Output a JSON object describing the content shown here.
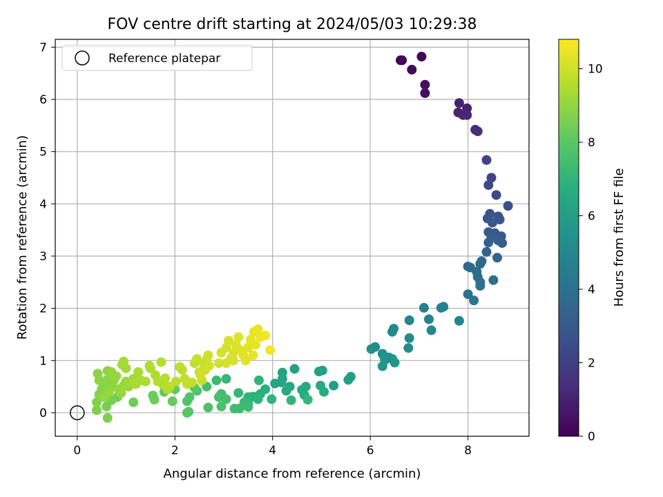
{
  "chart_data": {
    "type": "scatter",
    "title": "FOV centre drift starting at 2024/05/03 10:29:38",
    "xlabel": "Angular distance from reference (arcmin)",
    "ylabel": "Rotation from reference (arcmin)",
    "xlim": [
      -0.45,
      9.25
    ],
    "ylim": [
      -0.45,
      7.15
    ],
    "x_ticks": [
      0,
      2,
      4,
      6,
      8
    ],
    "y_ticks": [
      0,
      1,
      2,
      3,
      4,
      5,
      6,
      7
    ],
    "grid": true,
    "legend": {
      "placement": "top-left",
      "entries": [
        "Reference platepar"
      ]
    },
    "reference_point": {
      "x": 0,
      "y": 0,
      "label": "Reference platepar"
    },
    "colorbar": {
      "label": "Hours from first FF file",
      "colormap": "viridis",
      "min": 0,
      "max": 10.8,
      "ticks": [
        0,
        2,
        4,
        6,
        8,
        10
      ]
    },
    "points": [
      {
        "x": 6.65,
        "y": 6.75,
        "t": 0.1
      },
      {
        "x": 6.62,
        "y": 6.75,
        "t": 0.15
      },
      {
        "x": 7.05,
        "y": 6.82,
        "t": 0.2
      },
      {
        "x": 6.85,
        "y": 6.57,
        "t": 0.25
      },
      {
        "x": 7.12,
        "y": 6.28,
        "t": 0.4
      },
      {
        "x": 7.12,
        "y": 6.12,
        "t": 0.45
      },
      {
        "x": 7.82,
        "y": 5.93,
        "t": 1.0
      },
      {
        "x": 7.98,
        "y": 5.83,
        "t": 1.05
      },
      {
        "x": 7.8,
        "y": 5.75,
        "t": 1.1
      },
      {
        "x": 7.9,
        "y": 5.7,
        "t": 1.15
      },
      {
        "x": 7.98,
        "y": 5.7,
        "t": 1.2
      },
      {
        "x": 8.15,
        "y": 5.42,
        "t": 1.4
      },
      {
        "x": 8.2,
        "y": 5.39,
        "t": 1.45
      },
      {
        "x": 8.38,
        "y": 4.84,
        "t": 2.1
      },
      {
        "x": 8.48,
        "y": 4.5,
        "t": 2.2
      },
      {
        "x": 8.42,
        "y": 4.36,
        "t": 2.3
      },
      {
        "x": 8.58,
        "y": 4.17,
        "t": 2.4
      },
      {
        "x": 8.82,
        "y": 3.96,
        "t": 2.6
      },
      {
        "x": 8.45,
        "y": 3.81,
        "t": 2.7
      },
      {
        "x": 8.62,
        "y": 3.76,
        "t": 2.75
      },
      {
        "x": 8.4,
        "y": 3.72,
        "t": 2.8
      },
      {
        "x": 8.65,
        "y": 3.7,
        "t": 2.85
      },
      {
        "x": 8.5,
        "y": 3.64,
        "t": 2.9
      },
      {
        "x": 8.42,
        "y": 3.46,
        "t": 3.0
      },
      {
        "x": 8.55,
        "y": 3.44,
        "t": 3.05
      },
      {
        "x": 8.68,
        "y": 3.38,
        "t": 3.1
      },
      {
        "x": 8.48,
        "y": 3.36,
        "t": 3.15
      },
      {
        "x": 8.62,
        "y": 3.3,
        "t": 3.2
      },
      {
        "x": 8.42,
        "y": 3.26,
        "t": 3.25
      },
      {
        "x": 8.7,
        "y": 3.25,
        "t": 3.3
      },
      {
        "x": 8.38,
        "y": 3.08,
        "t": 3.4
      },
      {
        "x": 8.6,
        "y": 2.97,
        "t": 3.5
      },
      {
        "x": 8.28,
        "y": 2.9,
        "t": 3.6
      },
      {
        "x": 8.25,
        "y": 2.85,
        "t": 3.65
      },
      {
        "x": 8.0,
        "y": 2.8,
        "t": 3.7
      },
      {
        "x": 8.05,
        "y": 2.78,
        "t": 3.75
      },
      {
        "x": 8.18,
        "y": 2.7,
        "t": 3.8
      },
      {
        "x": 8.2,
        "y": 2.6,
        "t": 3.85
      },
      {
        "x": 8.25,
        "y": 2.5,
        "t": 3.9
      },
      {
        "x": 8.52,
        "y": 2.54,
        "t": 3.95
      },
      {
        "x": 8.25,
        "y": 2.43,
        "t": 4.0
      },
      {
        "x": 8.0,
        "y": 2.27,
        "t": 4.1
      },
      {
        "x": 8.12,
        "y": 2.15,
        "t": 4.2
      },
      {
        "x": 7.1,
        "y": 2.01,
        "t": 4.6
      },
      {
        "x": 7.5,
        "y": 2.03,
        "t": 4.7
      },
      {
        "x": 7.45,
        "y": 2.01,
        "t": 4.75
      },
      {
        "x": 7.2,
        "y": 1.79,
        "t": 4.8
      },
      {
        "x": 7.82,
        "y": 1.76,
        "t": 4.85
      },
      {
        "x": 6.8,
        "y": 1.77,
        "t": 4.9
      },
      {
        "x": 7.25,
        "y": 1.58,
        "t": 5.0
      },
      {
        "x": 6.48,
        "y": 1.61,
        "t": 5.05
      },
      {
        "x": 6.45,
        "y": 1.55,
        "t": 5.1
      },
      {
        "x": 6.8,
        "y": 1.43,
        "t": 5.15
      },
      {
        "x": 6.78,
        "y": 1.24,
        "t": 5.2
      },
      {
        "x": 6.1,
        "y": 1.26,
        "t": 5.25
      },
      {
        "x": 6.02,
        "y": 1.22,
        "t": 5.3
      },
      {
        "x": 6.25,
        "y": 1.13,
        "t": 5.35
      },
      {
        "x": 6.28,
        "y": 1.08,
        "t": 5.4
      },
      {
        "x": 6.38,
        "y": 1.06,
        "t": 5.45
      },
      {
        "x": 6.45,
        "y": 1.03,
        "t": 5.5
      },
      {
        "x": 6.3,
        "y": 1.01,
        "t": 5.55
      },
      {
        "x": 6.5,
        "y": 0.96,
        "t": 5.6
      },
      {
        "x": 6.25,
        "y": 0.89,
        "t": 5.65
      },
      {
        "x": 5.6,
        "y": 0.69,
        "t": 5.9
      },
      {
        "x": 5.55,
        "y": 0.63,
        "t": 5.95
      },
      {
        "x": 5.25,
        "y": 0.52,
        "t": 6.0
      },
      {
        "x": 5.02,
        "y": 0.81,
        "t": 6.05
      },
      {
        "x": 4.95,
        "y": 0.79,
        "t": 6.1
      },
      {
        "x": 4.45,
        "y": 0.84,
        "t": 6.15
      },
      {
        "x": 4.2,
        "y": 0.77,
        "t": 6.2
      },
      {
        "x": 4.2,
        "y": 0.65,
        "t": 6.25
      },
      {
        "x": 4.18,
        "y": 0.58,
        "t": 6.3
      },
      {
        "x": 4.05,
        "y": 0.56,
        "t": 6.35
      },
      {
        "x": 4.35,
        "y": 0.5,
        "t": 6.4
      },
      {
        "x": 4.68,
        "y": 0.5,
        "t": 6.45
      },
      {
        "x": 4.98,
        "y": 0.52,
        "t": 6.5
      },
      {
        "x": 4.6,
        "y": 0.44,
        "t": 6.55
      },
      {
        "x": 4.28,
        "y": 0.42,
        "t": 6.6
      },
      {
        "x": 5.05,
        "y": 0.4,
        "t": 6.65
      },
      {
        "x": 4.65,
        "y": 0.34,
        "t": 6.7
      },
      {
        "x": 3.85,
        "y": 0.45,
        "t": 6.75
      },
      {
        "x": 3.75,
        "y": 0.36,
        "t": 6.8
      },
      {
        "x": 3.6,
        "y": 0.31,
        "t": 6.85
      },
      {
        "x": 3.5,
        "y": 0.3,
        "t": 6.9
      },
      {
        "x": 3.7,
        "y": 0.26,
        "t": 6.95
      },
      {
        "x": 3.98,
        "y": 0.26,
        "t": 7.0
      },
      {
        "x": 4.38,
        "y": 0.24,
        "t": 7.05
      },
      {
        "x": 4.72,
        "y": 0.25,
        "t": 7.1
      },
      {
        "x": 3.72,
        "y": 0.62,
        "t": 7.0
      },
      {
        "x": 3.3,
        "y": 0.38,
        "t": 7.15
      },
      {
        "x": 3.5,
        "y": 0.18,
        "t": 7.2
      },
      {
        "x": 3.42,
        "y": 0.2,
        "t": 7.25
      },
      {
        "x": 3.5,
        "y": 0.11,
        "t": 7.3
      },
      {
        "x": 3.32,
        "y": 0.08,
        "t": 7.35
      },
      {
        "x": 3.22,
        "y": 0.08,
        "t": 7.4
      },
      {
        "x": 3.05,
        "y": 0.65,
        "t": 7.2
      },
      {
        "x": 2.85,
        "y": 0.62,
        "t": 7.3
      },
      {
        "x": 2.95,
        "y": 0.36,
        "t": 7.45
      },
      {
        "x": 2.9,
        "y": 0.3,
        "t": 7.5
      },
      {
        "x": 3.05,
        "y": 0.26,
        "t": 7.55
      },
      {
        "x": 2.95,
        "y": 0.12,
        "t": 7.6
      },
      {
        "x": 2.68,
        "y": 0.1,
        "t": 7.65
      },
      {
        "x": 2.65,
        "y": 0.5,
        "t": 7.5
      },
      {
        "x": 2.45,
        "y": 0.42,
        "t": 7.7
      },
      {
        "x": 2.3,
        "y": 0.3,
        "t": 7.75
      },
      {
        "x": 2.25,
        "y": 0.22,
        "t": 7.8
      },
      {
        "x": 2.28,
        "y": 0.02,
        "t": 7.85
      },
      {
        "x": 2.25,
        "y": 0.0,
        "t": 7.9
      },
      {
        "x": 2.4,
        "y": 0.48,
        "t": 8.0
      },
      {
        "x": 2.0,
        "y": 0.45,
        "t": 8.1
      },
      {
        "x": 1.8,
        "y": 0.5,
        "t": 8.15
      },
      {
        "x": 1.78,
        "y": 0.4,
        "t": 8.2
      },
      {
        "x": 1.95,
        "y": 0.22,
        "t": 8.25
      },
      {
        "x": 1.55,
        "y": 0.33,
        "t": 8.3
      },
      {
        "x": 1.58,
        "y": 0.25,
        "t": 8.35
      },
      {
        "x": 1.15,
        "y": 0.2,
        "t": 8.4
      },
      {
        "x": 0.82,
        "y": 0.3,
        "t": 8.45
      },
      {
        "x": 0.7,
        "y": 0.24,
        "t": 8.5
      },
      {
        "x": 0.6,
        "y": 0.12,
        "t": 8.55
      },
      {
        "x": 0.4,
        "y": 0.05,
        "t": 8.6
      },
      {
        "x": 0.62,
        "y": -0.1,
        "t": 8.65
      },
      {
        "x": 0.4,
        "y": 0.2,
        "t": 8.7
      },
      {
        "x": 0.45,
        "y": 0.35,
        "t": 8.75
      },
      {
        "x": 0.5,
        "y": 0.45,
        "t": 8.8
      },
      {
        "x": 0.55,
        "y": 0.55,
        "t": 8.82
      },
      {
        "x": 0.6,
        "y": 0.62,
        "t": 8.85
      },
      {
        "x": 0.62,
        "y": 0.8,
        "t": 8.88
      },
      {
        "x": 0.42,
        "y": 0.75,
        "t": 8.9
      },
      {
        "x": 0.45,
        "y": 0.62,
        "t": 8.92
      },
      {
        "x": 0.72,
        "y": 0.5,
        "t": 8.95
      },
      {
        "x": 0.75,
        "y": 0.62,
        "t": 8.98
      },
      {
        "x": 0.8,
        "y": 0.7,
        "t": 9.0
      },
      {
        "x": 0.7,
        "y": 0.78,
        "t": 9.02
      },
      {
        "x": 0.55,
        "y": 0.3,
        "t": 9.05
      },
      {
        "x": 0.65,
        "y": 0.4,
        "t": 9.08
      },
      {
        "x": 0.85,
        "y": 0.45,
        "t": 9.1
      },
      {
        "x": 0.9,
        "y": 0.38,
        "t": 9.12
      },
      {
        "x": 0.95,
        "y": 0.52,
        "t": 9.15
      },
      {
        "x": 1.0,
        "y": 0.6,
        "t": 9.18
      },
      {
        "x": 1.05,
        "y": 0.5,
        "t": 9.2
      },
      {
        "x": 1.1,
        "y": 0.58,
        "t": 9.22
      },
      {
        "x": 1.15,
        "y": 0.65,
        "t": 9.25
      },
      {
        "x": 1.0,
        "y": 0.85,
        "t": 9.28
      },
      {
        "x": 0.92,
        "y": 0.92,
        "t": 9.3
      },
      {
        "x": 0.95,
        "y": 0.98,
        "t": 9.32
      },
      {
        "x": 1.2,
        "y": 0.55,
        "t": 9.35
      },
      {
        "x": 1.3,
        "y": 0.62,
        "t": 9.38
      },
      {
        "x": 1.25,
        "y": 0.78,
        "t": 9.4
      },
      {
        "x": 1.4,
        "y": 0.6,
        "t": 9.42
      },
      {
        "x": 1.48,
        "y": 0.9,
        "t": 9.45
      },
      {
        "x": 1.5,
        "y": 0.85,
        "t": 9.48
      },
      {
        "x": 1.6,
        "y": 0.72,
        "t": 9.5
      },
      {
        "x": 1.65,
        "y": 0.6,
        "t": 9.52
      },
      {
        "x": 1.75,
        "y": 0.55,
        "t": 9.55
      },
      {
        "x": 1.72,
        "y": 0.97,
        "t": 9.58
      },
      {
        "x": 1.8,
        "y": 0.66,
        "t": 9.6
      },
      {
        "x": 1.85,
        "y": 0.45,
        "t": 9.62
      },
      {
        "x": 1.9,
        "y": 0.5,
        "t": 9.65
      },
      {
        "x": 2.02,
        "y": 0.6,
        "t": 9.68
      },
      {
        "x": 2.1,
        "y": 0.88,
        "t": 9.7
      },
      {
        "x": 2.15,
        "y": 0.82,
        "t": 9.72
      },
      {
        "x": 2.2,
        "y": 0.65,
        "t": 9.75
      },
      {
        "x": 2.25,
        "y": 0.55,
        "t": 9.78
      },
      {
        "x": 2.35,
        "y": 0.58,
        "t": 9.8
      },
      {
        "x": 2.4,
        "y": 0.95,
        "t": 9.82
      },
      {
        "x": 2.45,
        "y": 1.03,
        "t": 9.85
      },
      {
        "x": 2.5,
        "y": 0.78,
        "t": 9.88
      },
      {
        "x": 2.55,
        "y": 0.62,
        "t": 9.9
      },
      {
        "x": 2.58,
        "y": 0.95,
        "t": 9.92
      },
      {
        "x": 2.62,
        "y": 0.82,
        "t": 9.95
      },
      {
        "x": 2.65,
        "y": 1.02,
        "t": 9.98
      },
      {
        "x": 2.68,
        "y": 1.1,
        "t": 10.0
      },
      {
        "x": 2.7,
        "y": 0.9,
        "t": 10.02
      },
      {
        "x": 2.52,
        "y": 0.72,
        "t": 10.05
      },
      {
        "x": 2.9,
        "y": 0.95,
        "t": 10.08
      },
      {
        "x": 2.95,
        "y": 1.15,
        "t": 10.1
      },
      {
        "x": 3.05,
        "y": 1.25,
        "t": 10.12
      },
      {
        "x": 3.1,
        "y": 1.38,
        "t": 10.15
      },
      {
        "x": 3.15,
        "y": 1.05,
        "t": 10.18
      },
      {
        "x": 3.2,
        "y": 1.15,
        "t": 10.2
      },
      {
        "x": 3.25,
        "y": 1.3,
        "t": 10.22
      },
      {
        "x": 3.3,
        "y": 1.45,
        "t": 10.25
      },
      {
        "x": 3.35,
        "y": 1.2,
        "t": 10.28
      },
      {
        "x": 3.4,
        "y": 1.1,
        "t": 10.3
      },
      {
        "x": 3.45,
        "y": 1.0,
        "t": 10.32
      },
      {
        "x": 3.5,
        "y": 1.25,
        "t": 10.35
      },
      {
        "x": 3.55,
        "y": 1.4,
        "t": 10.38
      },
      {
        "x": 3.6,
        "y": 1.1,
        "t": 10.4
      },
      {
        "x": 3.62,
        "y": 1.55,
        "t": 10.42
      },
      {
        "x": 3.65,
        "y": 1.3,
        "t": 10.45
      },
      {
        "x": 3.7,
        "y": 1.6,
        "t": 10.5
      },
      {
        "x": 3.75,
        "y": 1.45,
        "t": 10.55
      },
      {
        "x": 3.85,
        "y": 1.48,
        "t": 10.6
      },
      {
        "x": 3.95,
        "y": 1.2,
        "t": 10.7
      },
      {
        "x": 3.05,
        "y": 0.95,
        "t": 10.1
      },
      {
        "x": 3.2,
        "y": 1.0,
        "t": 10.15
      }
    ]
  }
}
